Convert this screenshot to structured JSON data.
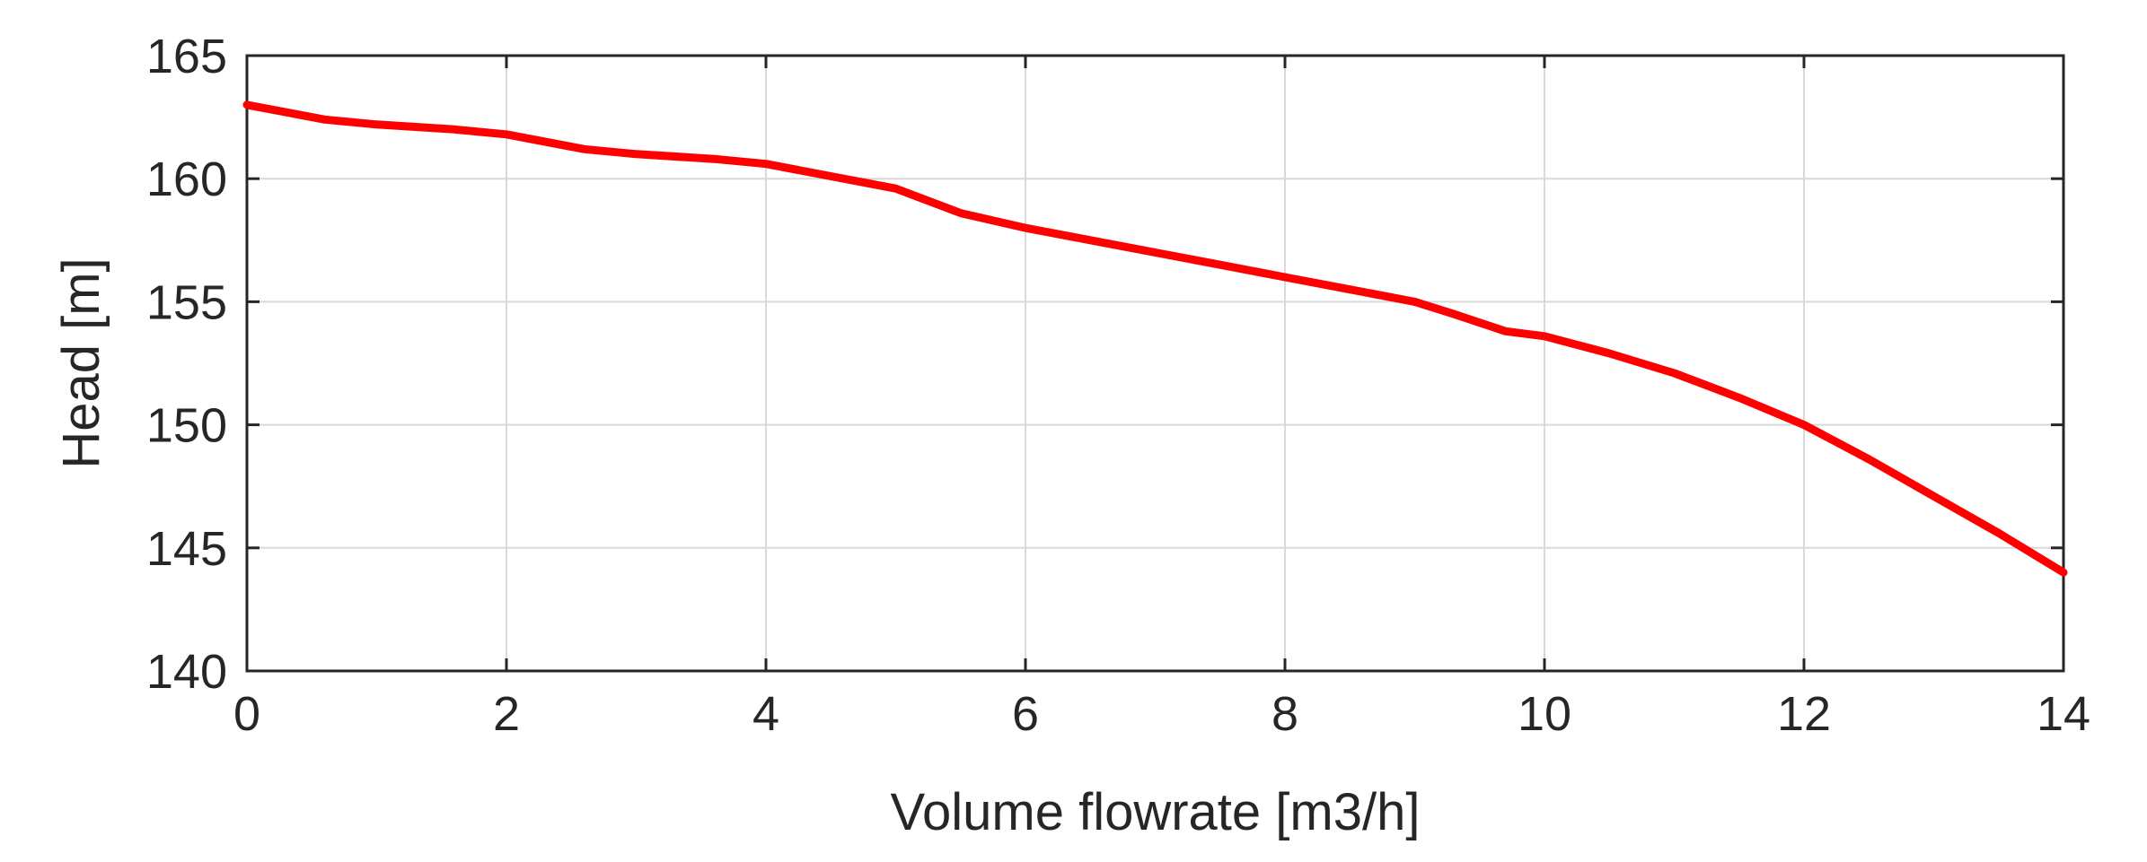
{
  "chart_data": {
    "type": "line",
    "title": "",
    "xlabel": "Volume flowrate [m3/h]",
    "ylabel": "Head [m]",
    "xlim": [
      0,
      14
    ],
    "ylim": [
      140,
      165
    ],
    "x_ticks": [
      0,
      2,
      4,
      6,
      8,
      10,
      12,
      14
    ],
    "y_ticks": [
      140,
      145,
      150,
      155,
      160,
      165
    ],
    "grid": true,
    "legend": "none",
    "series": [
      {
        "color": "#ff0000",
        "x": [
          0,
          0.6,
          1,
          1.6,
          2,
          2.6,
          3,
          3.6,
          4,
          4.5,
          5,
          5.5,
          6,
          6.5,
          7,
          7.5,
          8,
          8.5,
          9,
          9.3,
          9.7,
          10,
          10.5,
          11,
          11.5,
          12,
          12.5,
          13,
          13.5,
          14
        ],
        "y": [
          163,
          162.4,
          162.2,
          162,
          161.8,
          161.2,
          161,
          160.8,
          160.6,
          160.1,
          159.6,
          158.6,
          158,
          157.5,
          157,
          156.5,
          156,
          155.5,
          155,
          154.5,
          153.8,
          153.6,
          152.9,
          152.1,
          151.1,
          150,
          148.6,
          147.1,
          145.6,
          144
        ]
      }
    ]
  }
}
